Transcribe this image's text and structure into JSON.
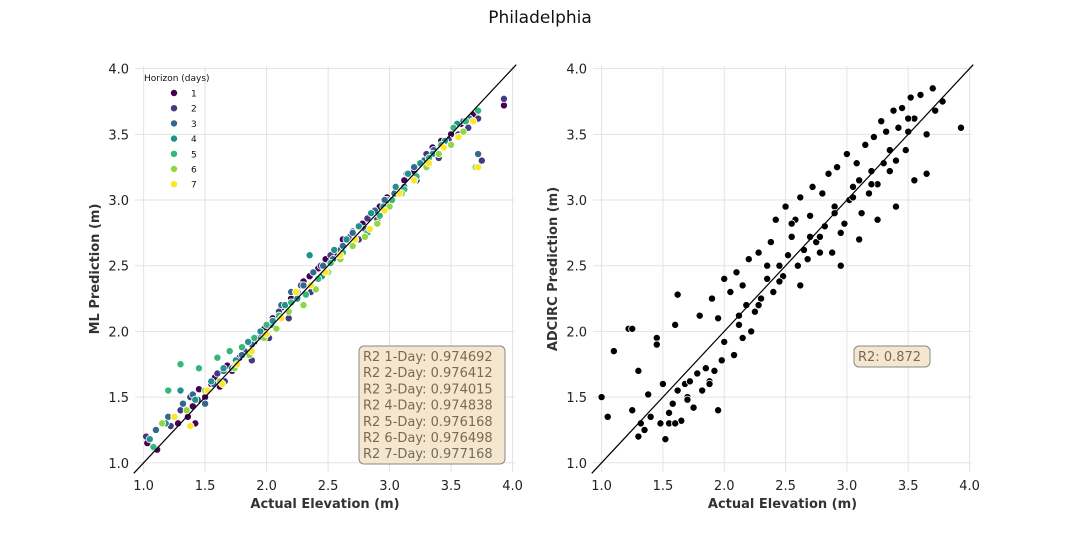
{
  "figure": {
    "title": "Philadelphia"
  },
  "chart_data": [
    {
      "type": "scatter",
      "title": "",
      "xlabel": "Actual Elevation (m)",
      "ylabel": "ML Prediction (m)",
      "xlim": [
        0.93,
        4.02
      ],
      "ylim": [
        0.93,
        4.02
      ],
      "xticks": [
        "1.0",
        "1.5",
        "2.0",
        "2.5",
        "3.0",
        "3.5",
        "4.0"
      ],
      "yticks": [
        "1.0",
        "1.5",
        "2.0",
        "2.5",
        "3.0",
        "3.5",
        "4.0"
      ],
      "grid": true,
      "identity_line": true,
      "legend": {
        "title": "Horizon (days)",
        "placement": "top-left",
        "entries": [
          "1",
          "2",
          "3",
          "4",
          "5",
          "6",
          "7"
        ]
      },
      "colors": [
        "#440154",
        "#443983",
        "#31688e",
        "#21918c",
        "#35b779",
        "#90d743",
        "#fde725"
      ],
      "series": [
        {
          "name": "1",
          "x": [
            1.03,
            1.11,
            1.28,
            1.36,
            1.4,
            1.42,
            1.45,
            1.5,
            1.55,
            1.58,
            1.62,
            1.68,
            1.72,
            1.78,
            1.85,
            1.9,
            1.98,
            2.05,
            2.12,
            2.2,
            2.25,
            2.3,
            2.35,
            2.42,
            2.48,
            2.55,
            2.62,
            2.7,
            2.78,
            2.85,
            2.92,
            2.98,
            3.05,
            3.12,
            3.2,
            3.28,
            3.35,
            3.42,
            3.5,
            3.58,
            3.68,
            3.93
          ],
          "y": [
            1.15,
            1.1,
            1.3,
            1.35,
            1.43,
            1.3,
            1.56,
            1.5,
            1.6,
            1.65,
            1.58,
            1.74,
            1.7,
            1.8,
            1.84,
            1.92,
            2.02,
            2.1,
            2.18,
            2.25,
            2.3,
            2.38,
            2.42,
            2.48,
            2.55,
            2.6,
            2.7,
            2.76,
            2.82,
            2.9,
            2.95,
            3.02,
            3.1,
            3.15,
            3.22,
            3.3,
            3.4,
            3.45,
            3.5,
            3.58,
            3.65,
            3.72
          ]
        },
        {
          "name": "2",
          "x": [
            1.02,
            1.22,
            1.3,
            1.38,
            1.44,
            1.52,
            1.6,
            1.66,
            1.75,
            1.82,
            1.88,
            1.95,
            2.02,
            2.1,
            2.18,
            2.28,
            2.36,
            2.44,
            2.52,
            2.6,
            2.68,
            2.75,
            2.82,
            2.9,
            2.98,
            3.06,
            3.14,
            3.22,
            3.3,
            3.4,
            3.48,
            3.56,
            3.64,
            3.72,
            3.75,
            3.93
          ],
          "y": [
            1.2,
            1.28,
            1.4,
            1.5,
            1.48,
            1.55,
            1.68,
            1.62,
            1.75,
            1.85,
            1.78,
            1.96,
            1.95,
            2.15,
            2.1,
            2.35,
            2.3,
            2.5,
            2.58,
            2.62,
            2.72,
            2.7,
            2.86,
            2.85,
            3.0,
            3.05,
            3.2,
            3.15,
            3.35,
            3.32,
            3.46,
            3.5,
            3.55,
            3.62,
            3.3,
            3.77
          ]
        },
        {
          "name": "3",
          "x": [
            1.1,
            1.2,
            1.32,
            1.4,
            1.5,
            1.57,
            1.65,
            1.72,
            1.8,
            1.88,
            1.96,
            2.04,
            2.12,
            2.2,
            2.3,
            2.38,
            2.46,
            2.54,
            2.62,
            2.7,
            2.8,
            2.88,
            2.96,
            3.04,
            3.12,
            3.2,
            3.28,
            3.36,
            3.44,
            3.52,
            3.6,
            3.72
          ],
          "y": [
            1.25,
            1.35,
            1.45,
            1.52,
            1.45,
            1.6,
            1.7,
            1.72,
            1.82,
            1.9,
            1.98,
            2.05,
            2.2,
            2.3,
            2.35,
            2.45,
            2.5,
            2.55,
            2.65,
            2.75,
            2.78,
            2.92,
            3.0,
            3.05,
            3.1,
            3.25,
            3.3,
            3.38,
            3.42,
            3.55,
            3.6,
            3.35
          ]
        },
        {
          "name": "4",
          "x": [
            1.05,
            1.18,
            1.3,
            1.42,
            1.55,
            1.65,
            1.75,
            1.85,
            1.95,
            2.05,
            2.15,
            2.25,
            2.35,
            2.45,
            2.55,
            2.65,
            2.75,
            2.85,
            2.95,
            3.05,
            3.15,
            3.25,
            3.35,
            3.45,
            3.55,
            3.65
          ],
          "y": [
            1.18,
            1.3,
            1.55,
            1.48,
            1.62,
            1.72,
            1.78,
            1.92,
            2.0,
            2.08,
            2.2,
            2.25,
            2.58,
            2.42,
            2.62,
            2.7,
            2.8,
            2.9,
            2.95,
            3.1,
            3.2,
            3.28,
            3.35,
            3.45,
            3.58,
            3.62
          ]
        },
        {
          "name": "5",
          "x": [
            1.08,
            1.2,
            1.3,
            1.45,
            1.6,
            1.7,
            1.8,
            1.9,
            2.0,
            2.1,
            2.2,
            2.32,
            2.42,
            2.52,
            2.62,
            2.72,
            2.82,
            2.92,
            3.02,
            3.12,
            3.22,
            3.32,
            3.42,
            3.52,
            3.62,
            3.72
          ],
          "y": [
            1.12,
            1.55,
            1.75,
            1.72,
            1.8,
            1.85,
            1.88,
            1.95,
            2.05,
            2.12,
            2.22,
            2.28,
            2.4,
            2.52,
            2.6,
            2.7,
            2.75,
            2.88,
            3.0,
            3.08,
            3.18,
            3.32,
            3.42,
            3.55,
            3.6,
            3.68
          ]
        },
        {
          "name": "6",
          "x": [
            1.15,
            1.35,
            1.5,
            1.62,
            1.74,
            1.86,
            1.98,
            2.08,
            2.18,
            2.3,
            2.4,
            2.5,
            2.6,
            2.7,
            2.8,
            2.9,
            3.0,
            3.1,
            3.2,
            3.3,
            3.4,
            3.5,
            3.6,
            3.7
          ],
          "y": [
            1.3,
            1.4,
            1.55,
            1.62,
            1.72,
            1.82,
            1.95,
            2.02,
            2.15,
            2.2,
            2.32,
            2.45,
            2.55,
            2.65,
            2.72,
            2.82,
            2.95,
            3.05,
            3.15,
            3.25,
            3.35,
            3.42,
            3.52,
            3.25
          ]
        },
        {
          "name": "7",
          "x": [
            1.25,
            1.38,
            1.52,
            1.64,
            1.76,
            1.88,
            2.0,
            2.12,
            2.24,
            2.36,
            2.48,
            2.6,
            2.72,
            2.84,
            2.96,
            3.08,
            3.2,
            3.32,
            3.44,
            3.56,
            3.68,
            3.72
          ],
          "y": [
            1.35,
            1.28,
            1.55,
            1.6,
            1.75,
            1.85,
            1.98,
            2.1,
            2.3,
            2.35,
            2.45,
            2.58,
            2.7,
            2.78,
            2.92,
            3.05,
            3.15,
            3.28,
            3.4,
            3.48,
            3.6,
            3.25
          ]
        }
      ],
      "annotation": [
        "R2 1-Day: 0.974692",
        "R2 2-Day: 0.976412",
        "R2 3-Day: 0.974015",
        "R2 4-Day: 0.974838",
        "R2 5-Day: 0.976168",
        "R2 6-Day: 0.976498",
        "R2 7-Day: 0.977168"
      ]
    },
    {
      "type": "scatter",
      "title": "",
      "xlabel": "Actual Elevation (m)",
      "ylabel": "ADCIRC Prediction (m)",
      "xlim": [
        0.93,
        4.02
      ],
      "ylim": [
        0.93,
        4.02
      ],
      "xticks": [
        "1.0",
        "1.5",
        "2.0",
        "2.5",
        "3.0",
        "3.5",
        "4.0"
      ],
      "yticks": [
        "1.0",
        "1.5",
        "2.0",
        "2.5",
        "3.0",
        "3.5",
        "4.0"
      ],
      "grid": true,
      "identity_line": true,
      "point_color": "#000000",
      "series": [
        {
          "name": "",
          "x": [
            1.0,
            1.05,
            1.1,
            1.22,
            1.25,
            1.3,
            1.32,
            1.35,
            1.38,
            1.4,
            1.45,
            1.48,
            1.5,
            1.52,
            1.55,
            1.58,
            1.6,
            1.62,
            1.65,
            1.68,
            1.7,
            1.72,
            1.75,
            1.78,
            1.8,
            1.82,
            1.85,
            1.88,
            1.9,
            1.92,
            1.95,
            1.98,
            2.0,
            2.05,
            2.08,
            2.1,
            2.12,
            2.15,
            2.18,
            2.2,
            2.22,
            2.25,
            2.28,
            2.3,
            2.35,
            2.38,
            2.4,
            2.42,
            2.45,
            2.48,
            2.5,
            2.52,
            2.55,
            2.58,
            2.6,
            2.62,
            2.65,
            2.68,
            2.7,
            2.72,
            2.75,
            2.78,
            2.8,
            2.82,
            2.85,
            2.88,
            2.9,
            2.92,
            2.95,
            2.98,
            3.0,
            3.02,
            3.05,
            3.08,
            3.1,
            3.12,
            3.15,
            3.18,
            3.2,
            3.22,
            3.25,
            3.28,
            3.3,
            3.32,
            3.35,
            3.38,
            3.4,
            3.42,
            3.45,
            3.48,
            3.5,
            3.52,
            3.55,
            3.6,
            3.65,
            3.7,
            3.72,
            3.78,
            3.93,
            1.25,
            1.3,
            1.55,
            1.62,
            1.75,
            1.88,
            1.95,
            2.12,
            2.28,
            2.45,
            2.62,
            2.78,
            2.95,
            3.1,
            3.25,
            3.4,
            3.55,
            3.65,
            1.45,
            1.6,
            1.7,
            2.0,
            2.15,
            2.35,
            2.55,
            2.7,
            2.9,
            3.05,
            3.2,
            3.35,
            3.5
          ],
          "y": [
            1.5,
            1.35,
            1.85,
            2.02,
            1.4,
            1.7,
            1.3,
            1.25,
            1.52,
            1.35,
            1.95,
            1.3,
            1.6,
            1.18,
            1.38,
            1.45,
            2.05,
            1.55,
            1.32,
            1.6,
            1.5,
            1.62,
            1.42,
            1.68,
            2.12,
            1.55,
            1.72,
            1.62,
            2.25,
            1.7,
            1.4,
            1.78,
            1.92,
            2.3,
            1.82,
            2.45,
            2.05,
            1.95,
            2.2,
            2.55,
            2.0,
            2.15,
            2.6,
            2.25,
            2.4,
            2.68,
            2.3,
            2.85,
            2.5,
            2.42,
            2.95,
            2.58,
            2.72,
            2.85,
            2.5,
            3.02,
            2.62,
            2.55,
            2.88,
            3.1,
            2.68,
            2.72,
            3.05,
            2.8,
            3.2,
            2.6,
            2.95,
            3.25,
            2.75,
            2.82,
            3.35,
            3.0,
            3.1,
            3.28,
            3.15,
            2.9,
            3.42,
            3.05,
            3.22,
            3.48,
            3.12,
            3.6,
            3.28,
            3.52,
            3.38,
            3.68,
            3.3,
            3.55,
            3.7,
            3.38,
            3.52,
            3.78,
            3.62,
            3.8,
            3.5,
            3.85,
            3.68,
            3.75,
            3.55,
            2.02,
            1.2,
            1.3,
            2.28,
            1.42,
            1.6,
            2.1,
            2.12,
            2.2,
            2.38,
            2.35,
            2.6,
            2.5,
            2.7,
            2.85,
            2.95,
            3.15,
            3.2,
            1.9,
            1.3,
            1.48,
            2.4,
            2.35,
            2.5,
            2.82,
            2.72,
            2.9,
            3.02,
            3.12,
            3.22,
            3.62
          ]
        }
      ],
      "annotation": [
        "R2: 0.872"
      ]
    }
  ]
}
